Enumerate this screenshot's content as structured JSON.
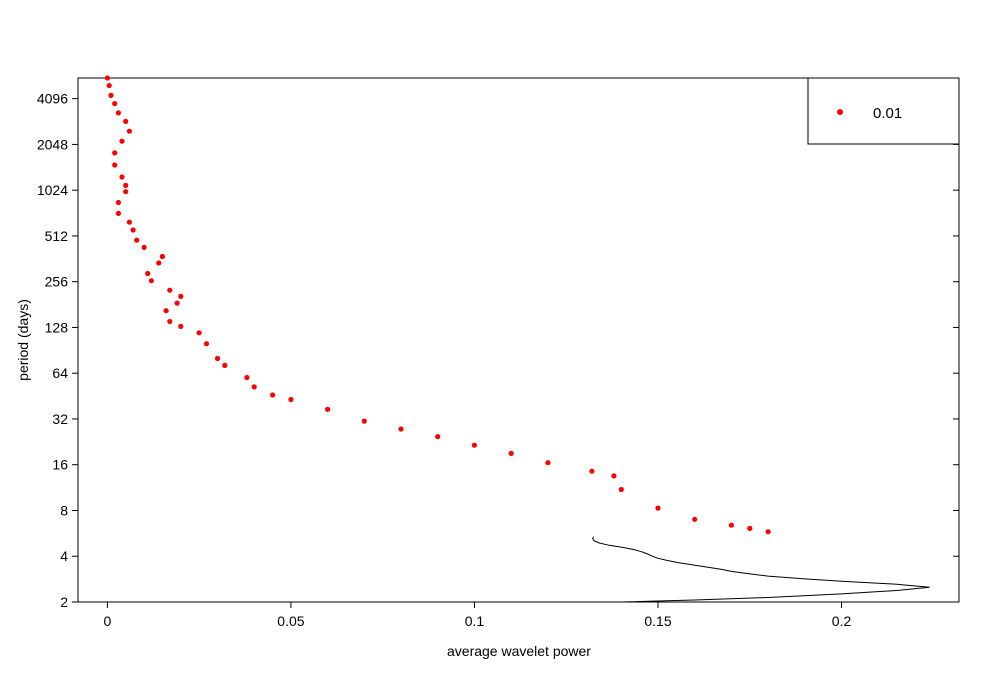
{
  "chart_data": {
    "type": "line",
    "title": "",
    "xlabel": "average wavelet power",
    "ylabel": "period (days)",
    "xlim": [
      -0.008,
      0.232
    ],
    "ylim": [
      2,
      5600
    ],
    "yscale": "log2",
    "x_ticks": [
      {
        "value": 0,
        "label": "0"
      },
      {
        "value": 0.05,
        "label": "0.05"
      },
      {
        "value": 0.1,
        "label": "0.1"
      },
      {
        "value": 0.15,
        "label": "0.15"
      },
      {
        "value": 0.2,
        "label": "0.2"
      }
    ],
    "y_ticks": [
      {
        "value": 2,
        "label": "2"
      },
      {
        "value": 4,
        "label": "4"
      },
      {
        "value": 8,
        "label": "8"
      },
      {
        "value": 16,
        "label": "16"
      },
      {
        "value": 32,
        "label": "32"
      },
      {
        "value": 64,
        "label": "64"
      },
      {
        "value": 128,
        "label": "128"
      },
      {
        "value": 256,
        "label": "256"
      },
      {
        "value": 512,
        "label": "512"
      },
      {
        "value": 1024,
        "label": "1024"
      },
      {
        "value": 2048,
        "label": "2048"
      },
      {
        "value": 4096,
        "label": "4096"
      }
    ],
    "legend": {
      "position": "top-right",
      "label": "0.01",
      "color": "#ff0000"
    },
    "grid": false,
    "series": [
      {
        "kind": "line",
        "color": "#000000",
        "points": [
          [
            0.14,
            2.0
          ],
          [
            0.16,
            2.06
          ],
          [
            0.18,
            2.14
          ],
          [
            0.2,
            2.26
          ],
          [
            0.215,
            2.38
          ],
          [
            0.224,
            2.5
          ],
          [
            0.215,
            2.62
          ],
          [
            0.2,
            2.74
          ],
          [
            0.19,
            2.84
          ],
          [
            0.18,
            2.96
          ],
          [
            0.175,
            3.06
          ],
          [
            0.17,
            3.18
          ],
          [
            0.1672,
            3.28
          ],
          [
            0.1662,
            3.31
          ],
          [
            0.1632,
            3.4
          ],
          [
            0.1592,
            3.52
          ],
          [
            0.1555,
            3.63
          ],
          [
            0.1526,
            3.75
          ],
          [
            0.15,
            3.88
          ],
          [
            0.1484,
            4.01
          ],
          [
            0.1472,
            4.14
          ],
          [
            0.1456,
            4.28
          ],
          [
            0.1435,
            4.42
          ],
          [
            0.1404,
            4.57
          ],
          [
            0.1367,
            4.72
          ],
          [
            0.134,
            4.89
          ],
          [
            0.1326,
            5.05
          ],
          [
            0.1322,
            5.22
          ],
          [
            0.1324,
            5.39
          ]
        ]
      },
      {
        "kind": "points",
        "color": "#ff0000",
        "points": [
          [
            0.18,
            5.8
          ],
          [
            0.175,
            6.1
          ],
          [
            0.17,
            6.4
          ],
          [
            0.16,
            7.0
          ],
          [
            0.15,
            8.3
          ],
          [
            0.14,
            11.0
          ],
          [
            0.138,
            13.5
          ],
          [
            0.132,
            14.5
          ],
          [
            0.12,
            16.5
          ],
          [
            0.11,
            19.0
          ],
          [
            0.1,
            21.5
          ],
          [
            0.09,
            24.5
          ],
          [
            0.08,
            27.5
          ],
          [
            0.07,
            31.0
          ],
          [
            0.06,
            37.0
          ],
          [
            0.05,
            43.0
          ],
          [
            0.045,
            46.0
          ],
          [
            0.04,
            52.0
          ],
          [
            0.038,
            60.0
          ],
          [
            0.032,
            72.0
          ],
          [
            0.03,
            80.0
          ],
          [
            0.027,
            100.0
          ],
          [
            0.025,
            118.0
          ],
          [
            0.02,
            130.0
          ],
          [
            0.017,
            140.0
          ],
          [
            0.016,
            165.0
          ],
          [
            0.019,
            185.0
          ],
          [
            0.02,
            205.0
          ],
          [
            0.017,
            225.0
          ],
          [
            0.012,
            260.0
          ],
          [
            0.011,
            290.0
          ],
          [
            0.014,
            340.0
          ],
          [
            0.015,
            375.0
          ],
          [
            0.01,
            430.0
          ],
          [
            0.008,
            480.0
          ],
          [
            0.007,
            560.0
          ],
          [
            0.006,
            630.0
          ],
          [
            0.003,
            720.0
          ],
          [
            0.003,
            850.0
          ],
          [
            0.005,
            1000.0
          ],
          [
            0.005,
            1100.0
          ],
          [
            0.004,
            1250.0
          ],
          [
            0.002,
            1500.0
          ],
          [
            0.002,
            1800.0
          ],
          [
            0.004,
            2150.0
          ],
          [
            0.006,
            2500.0
          ],
          [
            0.005,
            2900.0
          ],
          [
            0.003,
            3300.0
          ],
          [
            0.002,
            3800.0
          ],
          [
            0.001,
            4300.0
          ],
          [
            0.0005,
            5000.0
          ],
          [
            0.0,
            5600.0
          ]
        ]
      }
    ]
  }
}
